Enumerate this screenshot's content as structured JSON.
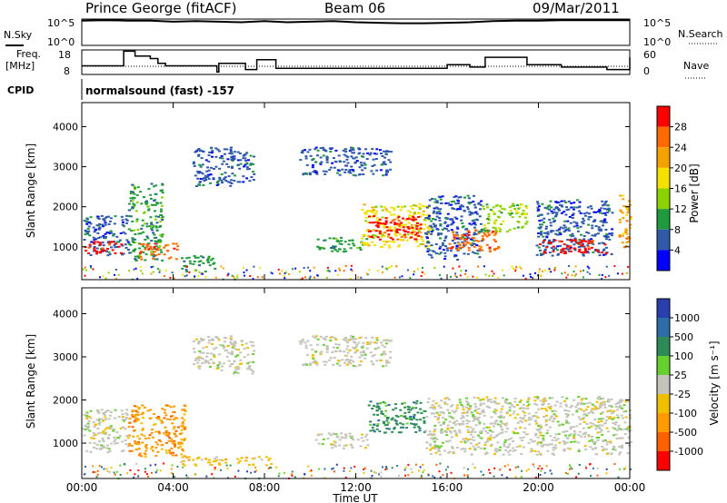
{
  "header": {
    "site": "Prince George (fitACF)",
    "beam": "Beam 06",
    "date": "09/Mar/2011"
  },
  "labels": {
    "nsky": "N.Sky",
    "nsearch": "N.Search",
    "freq_line1": "Freq.",
    "freq_line2": "[MHz]",
    "nave": "Nave",
    "cpid": "CPID",
    "cpid_value": "normalsound (fast) -157",
    "noise_left_ticks": [
      "10^5",
      "10^0"
    ],
    "noise_right_ticks": [
      "10^5",
      "10^0"
    ],
    "freq_ticks": [
      "18",
      "8"
    ],
    "nave_ticks": [
      "60",
      "0"
    ]
  },
  "colorbars": {
    "power": {
      "title": "Power [dB]",
      "ticks": [
        "28",
        "24",
        "20",
        "16",
        "12",
        "8",
        "4"
      ],
      "colors": [
        "#ff0000",
        "#ff6a00",
        "#f4a200",
        "#f4e100",
        "#8bd200",
        "#1f9a3c",
        "#2e5aa8",
        "#0000ff"
      ]
    },
    "velocity": {
      "title": "Velocity [m s⁻¹]",
      "ticks": [
        "1000",
        "500",
        "100",
        "25",
        "-25",
        "-100",
        "-500",
        "-1000"
      ],
      "colors": [
        "#2a3fae",
        "#2d6ea8",
        "#2e8b57",
        "#66d12e",
        "#c4c4bd",
        "#f0c000",
        "#ff9a00",
        "#ff6000",
        "#ff0000"
      ]
    }
  },
  "chart_data": [
    {
      "type": "line",
      "name": "noise",
      "title": "N.Sky / N.Search",
      "x": [
        "00:00",
        "01:00",
        "02:00",
        "03:00",
        "04:00",
        "05:00",
        "06:00",
        "07:00",
        "08:00",
        "09:00",
        "10:00",
        "11:00",
        "12:00",
        "13:00",
        "14:00",
        "15:00",
        "16:00",
        "17:00",
        "18:00",
        "19:00",
        "20:00",
        "21:00",
        "22:00",
        "23:00",
        "24:00"
      ],
      "y_log10": [
        4.7,
        4.8,
        4.7,
        4.7,
        4.5,
        4.6,
        4.5,
        4.4,
        4.6,
        4.4,
        4.5,
        4.6,
        4.4,
        4.3,
        4.2,
        4.2,
        4.3,
        4.4,
        4.6,
        4.7,
        4.7,
        4.8,
        4.8,
        4.8,
        4.8
      ],
      "ylim": [
        0,
        5
      ]
    },
    {
      "type": "line",
      "name": "frequency",
      "ylabel": "Freq. [MHz]",
      "x": [
        "00:00",
        "01:50",
        "02:20",
        "03:00",
        "03:20",
        "03:40",
        "05:40",
        "05:55",
        "06:00",
        "06:40",
        "07:10",
        "07:40",
        "08:30",
        "09:00",
        "11:00",
        "12:00",
        "14:00",
        "15:00",
        "16:00",
        "17:00",
        "17:40",
        "19:30",
        "21:00",
        "23:00",
        "24:00"
      ],
      "values": [
        11.5,
        17.5,
        15.5,
        14.5,
        12.5,
        11.5,
        11.5,
        9.0,
        12.5,
        12.5,
        10.0,
        14.0,
        10.5,
        10.5,
        10.5,
        10.5,
        10.5,
        10.5,
        12.0,
        11.0,
        15.0,
        12.0,
        11.0,
        10.0,
        15.0
      ],
      "ylim": [
        8,
        18
      ],
      "nave": 20
    },
    {
      "type": "heatmap",
      "name": "power",
      "ylabel": "Slant Range [km]",
      "xlabel": "Time UT",
      "xticks": [
        "00:00",
        "04:00",
        "08:00",
        "12:00",
        "16:00",
        "20:00",
        "00:00"
      ],
      "yticks": [
        "1000",
        "2000",
        "3000",
        "4000"
      ],
      "xlim_hours": [
        0,
        24
      ],
      "ylim_km": [
        180,
        4600
      ],
      "blobs": [
        {
          "t0": 0.0,
          "t1": 2.0,
          "r0": 800,
          "r1": 1800,
          "level": 6
        },
        {
          "t0": 0.1,
          "t1": 1.8,
          "r0": 850,
          "r1": 1150,
          "level": 0
        },
        {
          "t0": 2.0,
          "t1": 3.5,
          "r0": 650,
          "r1": 2600,
          "level": 5
        },
        {
          "t0": 2.5,
          "t1": 4.2,
          "r0": 700,
          "r1": 1100,
          "level": 1
        },
        {
          "t0": 4.3,
          "t1": 5.8,
          "r0": 400,
          "r1": 800,
          "level": 5
        },
        {
          "t0": 4.8,
          "t1": 6.6,
          "r0": 2500,
          "r1": 3500,
          "level": 6
        },
        {
          "t0": 6.5,
          "t1": 7.5,
          "r0": 2600,
          "r1": 3400,
          "level": 6
        },
        {
          "t0": 9.5,
          "t1": 13.5,
          "r0": 2800,
          "r1": 3500,
          "level": 6
        },
        {
          "t0": 10.2,
          "t1": 12.5,
          "r0": 900,
          "r1": 1250,
          "level": 5
        },
        {
          "t0": 12.2,
          "t1": 15.2,
          "r0": 1000,
          "r1": 2100,
          "level": 3
        },
        {
          "t0": 12.5,
          "t1": 14.8,
          "r0": 1200,
          "r1": 1800,
          "level": 0
        },
        {
          "t0": 15.0,
          "t1": 17.5,
          "r0": 700,
          "r1": 2300,
          "level": 6
        },
        {
          "t0": 16.0,
          "t1": 18.2,
          "r0": 900,
          "r1": 1450,
          "level": 1
        },
        {
          "t0": 17.5,
          "t1": 19.5,
          "r0": 1400,
          "r1": 2100,
          "level": 4
        },
        {
          "t0": 19.8,
          "t1": 23.2,
          "r0": 800,
          "r1": 2200,
          "level": 6
        },
        {
          "t0": 20.0,
          "t1": 23.0,
          "r0": 850,
          "r1": 1200,
          "level": 0
        },
        {
          "t0": 23.5,
          "t1": 24.0,
          "r0": 900,
          "r1": 2300,
          "level": 2
        }
      ]
    },
    {
      "type": "heatmap",
      "name": "velocity",
      "ylabel": "Slant Range [km]",
      "xlabel": "Time UT",
      "xticks": [
        "00:00",
        "04:00",
        "08:00",
        "12:00",
        "16:00",
        "20:00",
        "00:00"
      ],
      "yticks": [
        "1000",
        "2000",
        "3000",
        "4000"
      ],
      "xlim_hours": [
        0,
        24
      ],
      "ylim_km": [
        180,
        4600
      ],
      "blobs": [
        {
          "t0": 0.0,
          "t1": 2.0,
          "r0": 800,
          "r1": 1800,
          "level": 4
        },
        {
          "t0": 2.0,
          "t1": 4.5,
          "r0": 700,
          "r1": 1900,
          "level": 6
        },
        {
          "t0": 4.3,
          "t1": 8.3,
          "r0": 500,
          "r1": 700,
          "level": 5
        },
        {
          "t0": 4.8,
          "t1": 6.6,
          "r0": 2700,
          "r1": 3500,
          "level": 4
        },
        {
          "t0": 6.5,
          "t1": 7.5,
          "r0": 2600,
          "r1": 3400,
          "level": 4
        },
        {
          "t0": 9.5,
          "t1": 13.5,
          "r0": 2800,
          "r1": 3500,
          "level": 4
        },
        {
          "t0": 10.2,
          "t1": 12.5,
          "r0": 900,
          "r1": 1250,
          "level": 4
        },
        {
          "t0": 12.5,
          "t1": 15.0,
          "r0": 1250,
          "r1": 2000,
          "level": 2
        },
        {
          "t0": 15.0,
          "t1": 24.0,
          "r0": 750,
          "r1": 2100,
          "level": 4
        }
      ]
    }
  ]
}
